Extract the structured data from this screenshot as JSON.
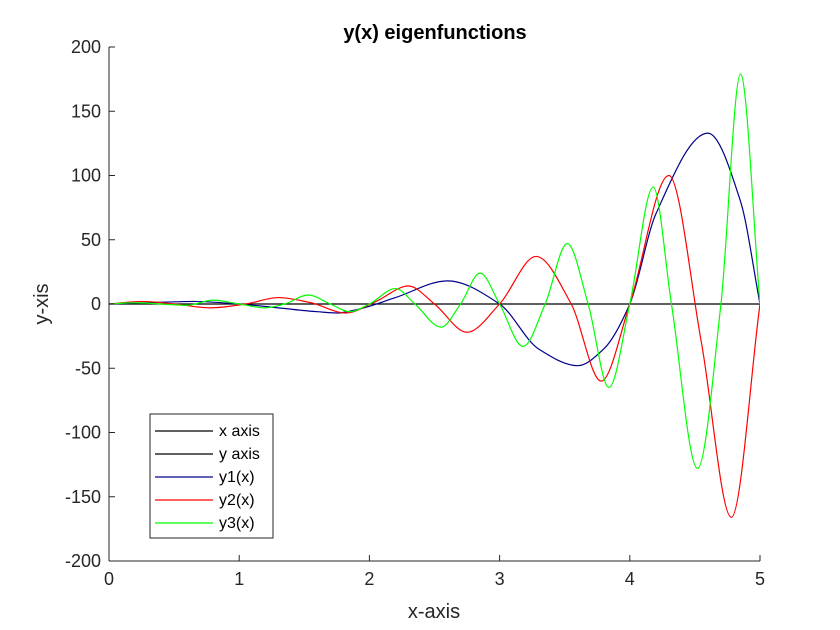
{
  "chart_data": {
    "type": "line",
    "title": "y(x) eigenfunctions",
    "xlabel": "x-axis",
    "ylabel": "y-xis",
    "xlim": [
      0,
      5
    ],
    "ylim": [
      -200,
      200
    ],
    "xticks": [
      0,
      1,
      2,
      3,
      4,
      5
    ],
    "yticks": [
      -200,
      -150,
      -100,
      -50,
      0,
      50,
      100,
      150,
      200
    ],
    "grid": false,
    "legend_position": "bottom-left",
    "series": [
      {
        "name": "x axis",
        "color": "#000000",
        "x": [
          0,
          5
        ],
        "y": [
          0,
          0
        ]
      },
      {
        "name": "y axis",
        "color": "#000000",
        "x": [
          0,
          0
        ],
        "y": [
          0,
          0
        ]
      },
      {
        "name": "y1(x)",
        "color": "#00008b",
        "x": [
          0,
          0.3,
          0.65,
          1.0,
          1.3,
          1.6,
          1.75,
          1.92,
          2.2,
          2.6,
          3.0,
          3.3,
          3.6,
          3.8,
          4.0,
          4.2,
          4.6,
          4.85,
          5.0
        ],
        "y": [
          0,
          1,
          2,
          0,
          -3,
          -6,
          -7,
          -4,
          5,
          18,
          0,
          -35,
          -48,
          -35,
          0,
          70,
          133,
          80,
          0
        ]
      },
      {
        "name": "y2(x)",
        "color": "#ff0000",
        "x": [
          0,
          0.25,
          0.5,
          0.78,
          1.05,
          1.3,
          1.55,
          1.82,
          2.05,
          2.3,
          2.5,
          2.75,
          3.0,
          3.28,
          3.55,
          3.78,
          4.0,
          4.3,
          4.55,
          4.78,
          5.0
        ],
        "y": [
          0,
          2,
          0,
          -3,
          0,
          5,
          1,
          -7,
          2,
          14,
          0,
          -22,
          0,
          37,
          0,
          -60,
          0,
          100,
          -30,
          -166,
          0
        ]
      },
      {
        "name": "y3(x)",
        "color": "#00ff00",
        "x": [
          0,
          0.2,
          0.4,
          0.6,
          0.8,
          1.0,
          1.2,
          1.35,
          1.53,
          1.7,
          1.85,
          2.0,
          2.2,
          2.35,
          2.55,
          2.7,
          2.85,
          3.0,
          3.18,
          3.35,
          3.52,
          3.68,
          3.84,
          4.0,
          4.18,
          4.32,
          4.52,
          4.7,
          4.85,
          5.0
        ],
        "y": [
          0,
          1,
          0,
          -1,
          3,
          0,
          -3,
          0,
          7,
          0,
          -6,
          0,
          12,
          0,
          -18,
          0,
          24,
          0,
          -33,
          0,
          47,
          0,
          -65,
          0,
          91,
          0,
          -128,
          0,
          179,
          0
        ]
      }
    ]
  }
}
